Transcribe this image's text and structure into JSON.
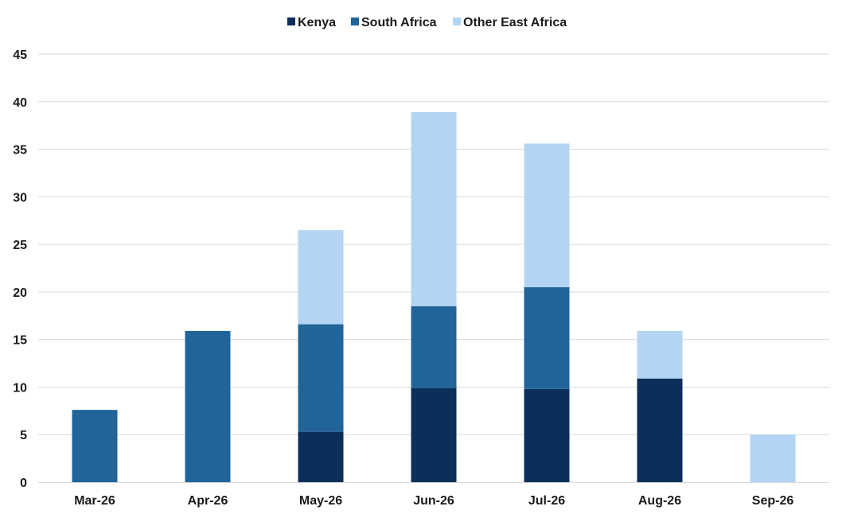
{
  "chart_data": {
    "type": "bar",
    "stacked": true,
    "categories": [
      "Mar-26",
      "Apr-26",
      "May-26",
      "Jun-26",
      "Jul-26",
      "Aug-26",
      "Sep-26"
    ],
    "series": [
      {
        "name": "Kenya",
        "color": "#0b2f5a",
        "values": [
          0,
          0,
          5.3,
          9.9,
          9.8,
          10.9,
          0
        ]
      },
      {
        "name": "South Africa",
        "color": "#21649a",
        "values": [
          7.6,
          15.9,
          11.3,
          8.6,
          10.7,
          0,
          0
        ]
      },
      {
        "name": "Other East Africa",
        "color": "#b3d5f3",
        "values": [
          0,
          0,
          9.9,
          20.4,
          15.1,
          5.0,
          5.0
        ]
      }
    ],
    "ylim": [
      0,
      45
    ],
    "yticks": [
      "0",
      "5",
      "10",
      "15",
      "20",
      "25",
      "30",
      "35",
      "40",
      "45"
    ],
    "grid": true,
    "legend_position": "top-center",
    "title": "",
    "xlabel": "",
    "ylabel": ""
  }
}
